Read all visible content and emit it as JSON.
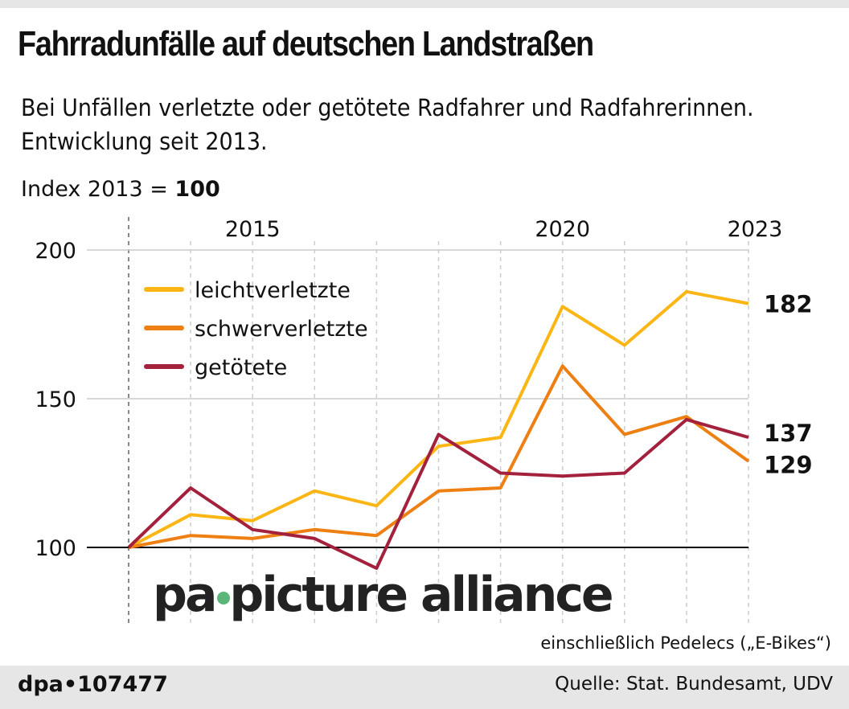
{
  "title": "Fahrradunfälle auf deutschen Landstraßen",
  "subtitle_line1": "Bei Unfällen verletzte oder getötete Radfahrer und Radfahrerinnen.",
  "subtitle_line2": "Entwicklung seit 2013.",
  "index_label": "Index 2013 = ",
  "index_value": "100",
  "note": "einschließlich Pedelecs („E-Bikes“)",
  "source": "Quelle: Stat. Bundesamt, UDV",
  "id": "dpa•107477",
  "watermark": "pa picture alliance",
  "chart_data": {
    "type": "line",
    "x": [
      2013,
      2014,
      2015,
      2016,
      2017,
      2018,
      2019,
      2020,
      2021,
      2022,
      2023
    ],
    "x_tick_labels": [
      "2015",
      "2020",
      "2023"
    ],
    "y_ticks": [
      100,
      150,
      200
    ],
    "ylim": [
      75,
      205
    ],
    "grid": "vertical dashed per year",
    "legend": "top-left",
    "series": [
      {
        "name": "leichtverletzte",
        "color": "#fbb616",
        "values": [
          100,
          111,
          109,
          119,
          114,
          134,
          137,
          181,
          168,
          186,
          182
        ],
        "end_label": "182"
      },
      {
        "name": "schwerverletzte",
        "color": "#ee7f12",
        "values": [
          100,
          104,
          103,
          106,
          104,
          119,
          120,
          161,
          138,
          144,
          129
        ],
        "end_label": "129"
      },
      {
        "name": "getötete",
        "color": "#a3213d",
        "values": [
          100,
          120,
          106,
          103,
          93,
          138,
          125,
          124,
          125,
          143,
          137
        ],
        "end_label": "137"
      }
    ]
  }
}
